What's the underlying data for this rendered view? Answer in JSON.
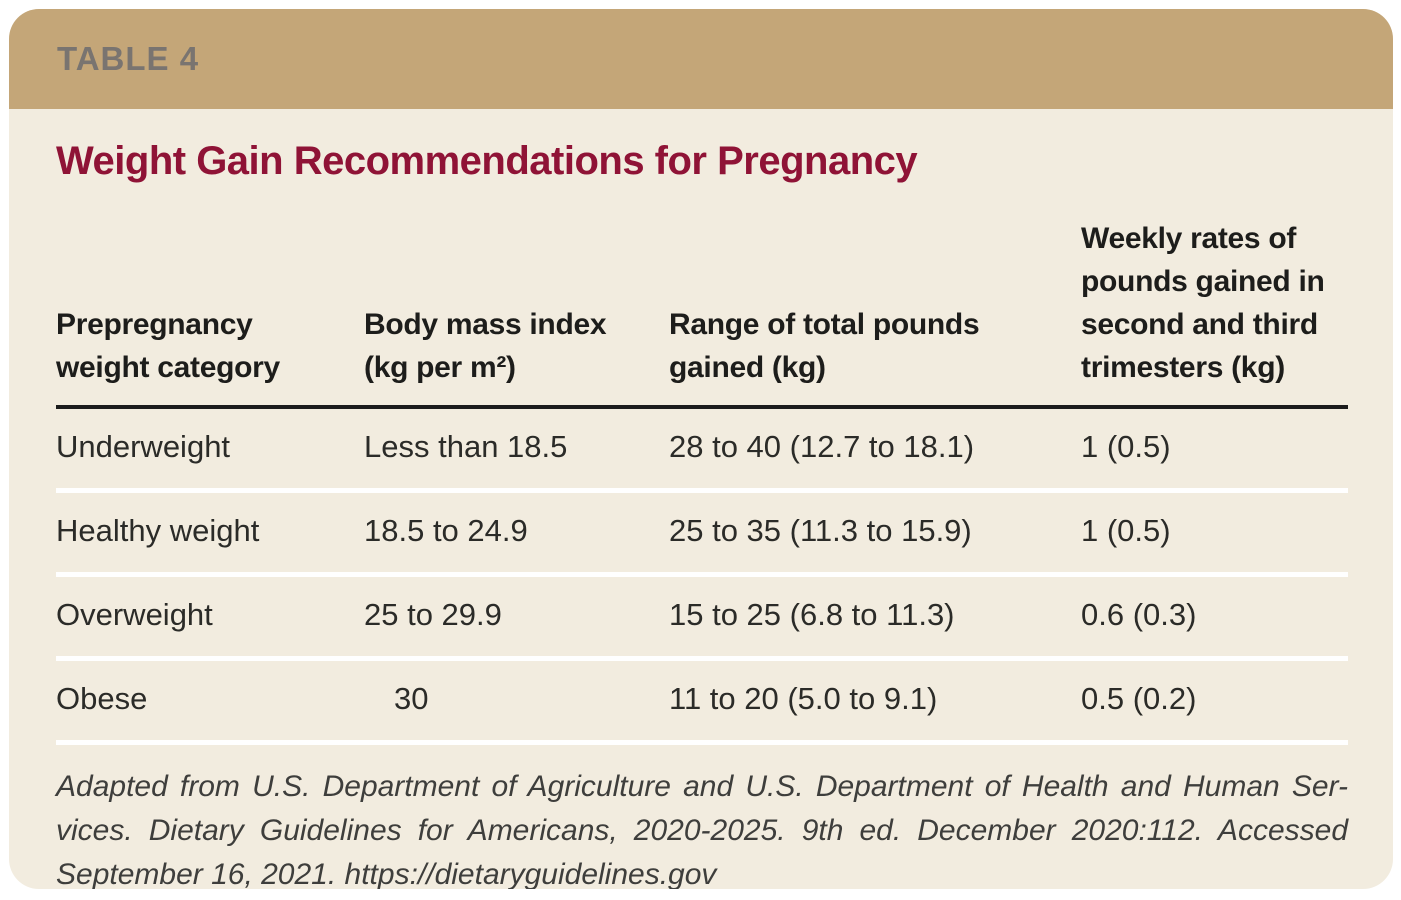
{
  "page": {
    "table_label": "TABLE 4",
    "title": "Weight Gain Recommendations for Pregnancy"
  },
  "table": {
    "columns": [
      {
        "label": "Prepregnancy weight category"
      },
      {
        "label": "Body mass index (kg per m²)"
      },
      {
        "label": "Range of total pounds gained (kg)"
      },
      {
        "label": "Weekly rates of pounds gained in second and third trimesters (kg)"
      }
    ],
    "rows": [
      {
        "category": "Underweight",
        "bmi": "Less than 18.5",
        "total_pounds": "28 to 40 (12.7 to 18.1)",
        "weekly_rate": "1 (0.5)"
      },
      {
        "category": "Healthy weight",
        "bmi": "18.5 to 24.9",
        "total_pounds": "25 to 35 (11.3 to 15.9)",
        "weekly_rate": "1 (0.5)"
      },
      {
        "category": "Overweight",
        "bmi": "25 to 29.9",
        "total_pounds": "15 to 25 (6.8 to 11.3)",
        "weekly_rate": "0.6 (0.3)"
      },
      {
        "category": "Obese",
        "bmi": "30",
        "total_pounds": "11 to 20 (5.0 to 9.1)",
        "weekly_rate": "0.5 (0.2)"
      }
    ]
  },
  "footnote": {
    "lines": [
      "Adapted from U.S. Department of Agriculture and U.S. Department of Health and Human Ser-",
      "vices. Dietary Guidelines for Americans, 2020-2025. 9th ed. December 2020:112. Accessed",
      "September 16, 2021. https://dietaryguidelines.gov"
    ],
    "full_text": "Adapted from U.S. Department of Agriculture and U.S. Department of Health and Human Services. Dietary Guidelines for Americans, 2020-2025. 9th ed. December 2020:112. Accessed September 16, 2021. https://dietaryguidelines.gov"
  },
  "colors": {
    "header_band": "#c4a678",
    "card_background": "#f2ecdf",
    "page_background": "#ffffff",
    "title_maroon": "#8f1336",
    "table_label_gray": "#797470",
    "rule_black": "#1c1c1c",
    "row_divider_white": "#ffffff",
    "body_text": "#2b2b28",
    "header_text": "#1d1d1b",
    "footnote_text": "#3e3e3c"
  }
}
